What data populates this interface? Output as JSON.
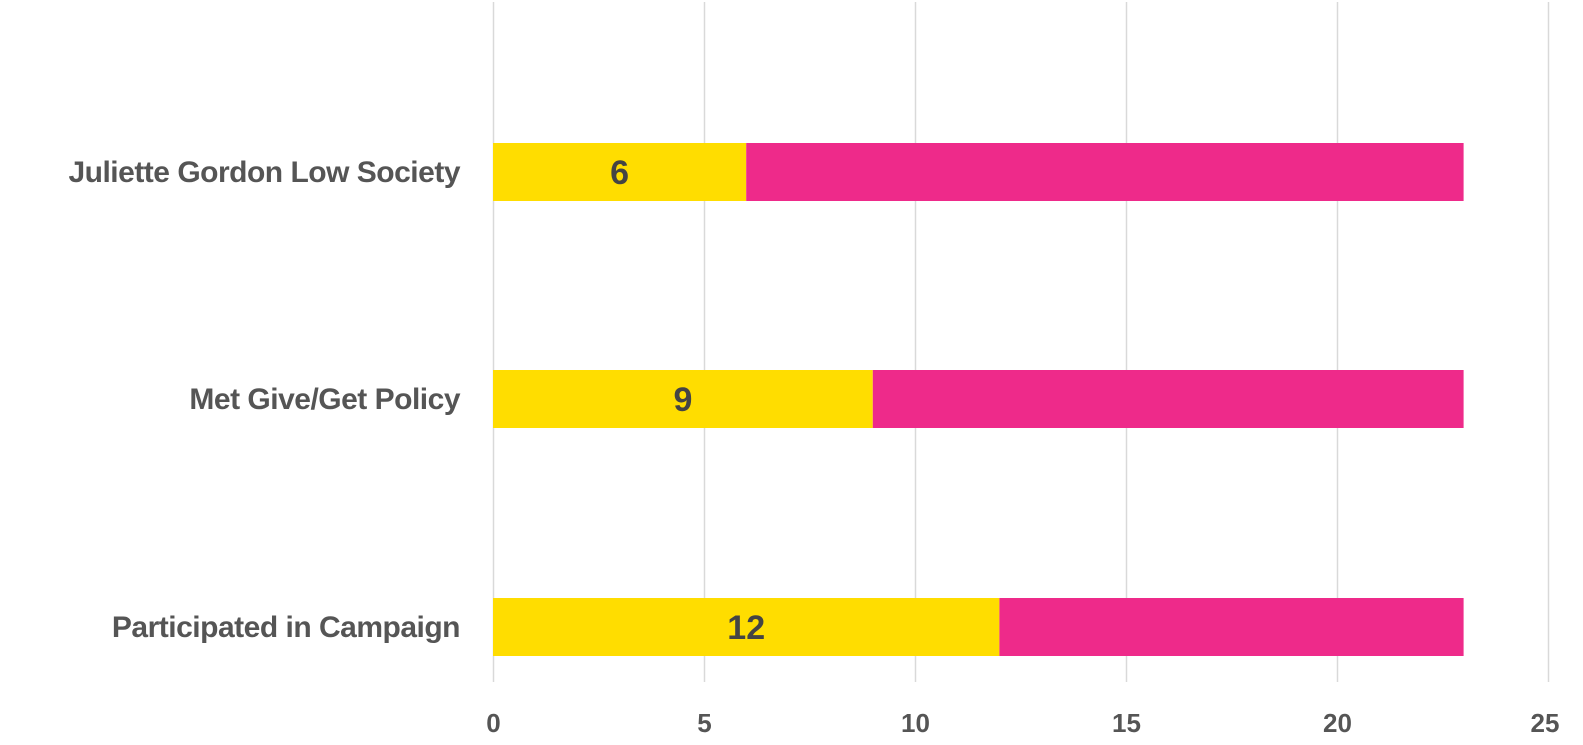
{
  "chart_data": {
    "type": "bar",
    "orientation": "horizontal",
    "stacked": true,
    "categories": [
      "Juliette Gordon Low Society",
      "Met Give/Get Policy",
      "Participated in Campaign"
    ],
    "series": [
      {
        "values": [
          6,
          9,
          12
        ],
        "color": "#FFDD00",
        "data_labels": [
          "6",
          "9",
          "12"
        ]
      },
      {
        "values": [
          17,
          14,
          11
        ],
        "color": "#EE2A8A"
      }
    ],
    "xlim": [
      0,
      25
    ],
    "xticks": [
      0,
      5,
      10,
      15,
      20,
      25
    ],
    "xtick_labels": [
      "0",
      "5",
      "10",
      "15",
      "20",
      "25"
    ],
    "grid": true,
    "text_color": "#555555",
    "data_label_color": "#444444",
    "grid_color": "#D9D9D9"
  }
}
